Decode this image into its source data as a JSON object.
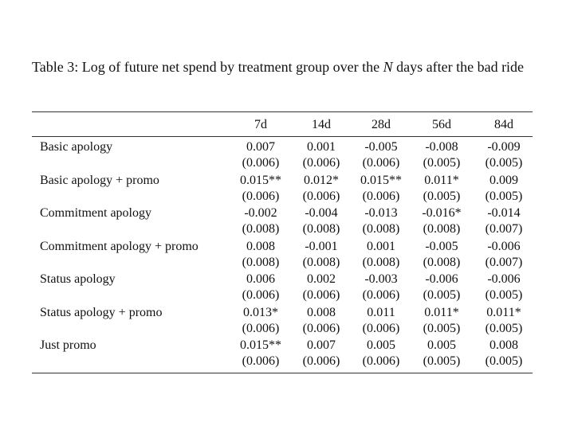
{
  "caption": {
    "label": "Table 3:",
    "text_before": "Log of future net spend by treatment group over the",
    "variable": "N",
    "text_after": "days after the bad ride"
  },
  "table": {
    "columns": [
      "7d",
      "14d",
      "28d",
      "56d",
      "84d"
    ],
    "rows": [
      {
        "label": "Basic apology",
        "estimates": [
          "0.007",
          "0.001",
          "-0.005",
          "-0.008",
          "-0.009"
        ],
        "std_errors": [
          "(0.006)",
          "(0.006)",
          "(0.006)",
          "(0.005)",
          "(0.005)"
        ]
      },
      {
        "label": "Basic apology + promo",
        "estimates": [
          "0.015**",
          "0.012*",
          "0.015**",
          "0.011*",
          "0.009"
        ],
        "std_errors": [
          "(0.006)",
          "(0.006)",
          "(0.006)",
          "(0.005)",
          "(0.005)"
        ]
      },
      {
        "label": "Commitment apology",
        "estimates": [
          "-0.002",
          "-0.004",
          "-0.013",
          "-0.016*",
          "-0.014"
        ],
        "std_errors": [
          "(0.008)",
          "(0.008)",
          "(0.008)",
          "(0.008)",
          "(0.007)"
        ]
      },
      {
        "label": "Commitment apology + promo",
        "estimates": [
          "0.008",
          "-0.001",
          "0.001",
          "-0.005",
          "-0.006"
        ],
        "std_errors": [
          "(0.008)",
          "(0.008)",
          "(0.008)",
          "(0.008)",
          "(0.007)"
        ]
      },
      {
        "label": "Status apology",
        "estimates": [
          "0.006",
          "0.002",
          "-0.003",
          "-0.006",
          "-0.006"
        ],
        "std_errors": [
          "(0.006)",
          "(0.006)",
          "(0.006)",
          "(0.005)",
          "(0.005)"
        ]
      },
      {
        "label": "Status apology + promo",
        "estimates": [
          "0.013*",
          "0.008",
          "0.011",
          "0.011*",
          "0.011*"
        ],
        "std_errors": [
          "(0.006)",
          "(0.006)",
          "(0.006)",
          "(0.005)",
          "(0.005)"
        ]
      },
      {
        "label": "Just promo",
        "estimates": [
          "0.015**",
          "0.007",
          "0.005",
          "0.005",
          "0.008"
        ],
        "std_errors": [
          "(0.006)",
          "(0.006)",
          "(0.006)",
          "(0.005)",
          "(0.005)"
        ]
      }
    ]
  }
}
